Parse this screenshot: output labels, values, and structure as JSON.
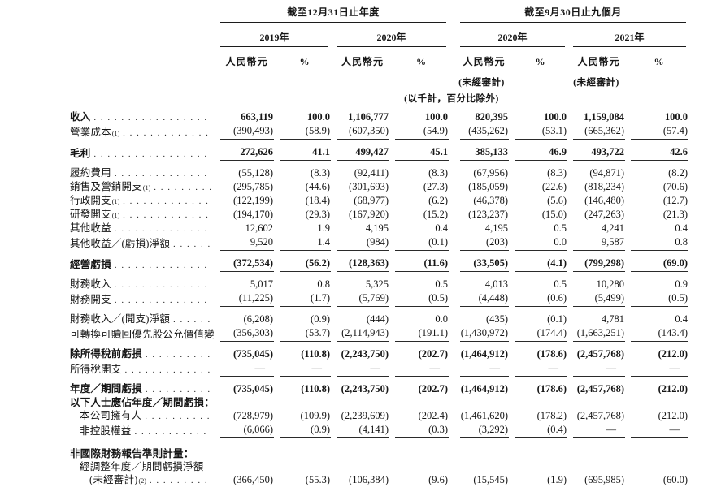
{
  "table": {
    "header": {
      "groups": [
        {
          "title": "截至12月31日止年度",
          "years": [
            {
              "label": "2019年",
              "unaudited": false
            },
            {
              "label": "2020年",
              "unaudited": false
            }
          ]
        },
        {
          "title": "截至9月30日止九個月",
          "years": [
            {
              "label": "2020年",
              "unaudited": true
            },
            {
              "label": "2021年",
              "unaudited": true
            }
          ]
        }
      ],
      "currency_label": "人民幣元",
      "percent_label": "%",
      "unaudited_label": "(未經審計)",
      "scale_note": "(以千計，百分比除外)"
    },
    "rows": [
      {
        "label": "收入",
        "sup": "",
        "bold": true,
        "indent": 0,
        "leader": true,
        "gap_above": true,
        "rule_below": false,
        "values": [
          "663,119",
          "100.0",
          "1,106,777",
          "100.0",
          "820,395",
          "100.0",
          "1,159,084",
          "100.0"
        ]
      },
      {
        "label": "營業成本",
        "sup": "(1)",
        "bold": false,
        "indent": 0,
        "leader": true,
        "gap_above": false,
        "rule_below": true,
        "values": [
          "(390,493)",
          "(58.9)",
          "(607,350)",
          "(54.9)",
          "(435,262)",
          "(53.1)",
          "(665,362)",
          "(57.4)"
        ]
      },
      {
        "label": "毛利",
        "sup": "",
        "bold": true,
        "indent": 0,
        "leader": true,
        "gap_above": true,
        "rule_below": true,
        "values": [
          "272,626",
          "41.1",
          "499,427",
          "45.1",
          "385,133",
          "46.9",
          "493,722",
          "42.6"
        ]
      },
      {
        "label": "履約費用",
        "sup": "",
        "bold": false,
        "indent": 0,
        "leader": true,
        "gap_above": true,
        "rule_below": false,
        "values": [
          "(55,128)",
          "(8.3)",
          "(92,411)",
          "(8.3)",
          "(67,956)",
          "(8.3)",
          "(94,871)",
          "(8.2)"
        ]
      },
      {
        "label": "銷售及營銷開支",
        "sup": "(1)",
        "bold": false,
        "indent": 0,
        "leader": true,
        "gap_above": false,
        "rule_below": false,
        "values": [
          "(295,785)",
          "(44.6)",
          "(301,693)",
          "(27.3)",
          "(185,059)",
          "(22.6)",
          "(818,234)",
          "(70.6)"
        ]
      },
      {
        "label": "行政開支",
        "sup": "(1)",
        "bold": false,
        "indent": 0,
        "leader": true,
        "gap_above": false,
        "rule_below": false,
        "values": [
          "(122,199)",
          "(18.4)",
          "(68,977)",
          "(6.2)",
          "(46,378)",
          "(5.6)",
          "(146,480)",
          "(12.7)"
        ]
      },
      {
        "label": "研發開支",
        "sup": "(1)",
        "bold": false,
        "indent": 0,
        "leader": true,
        "gap_above": false,
        "rule_below": false,
        "values": [
          "(194,170)",
          "(29.3)",
          "(167,920)",
          "(15.2)",
          "(123,237)",
          "(15.0)",
          "(247,263)",
          "(21.3)"
        ]
      },
      {
        "label": "其他收益",
        "sup": "",
        "bold": false,
        "indent": 0,
        "leader": true,
        "gap_above": false,
        "rule_below": false,
        "values": [
          "12,602",
          "1.9",
          "4,195",
          "0.4",
          "4,195",
          "0.5",
          "4,241",
          "0.4"
        ]
      },
      {
        "label": "其他收益／(虧損)淨額",
        "sup": "",
        "bold": false,
        "indent": 0,
        "leader": true,
        "gap_above": false,
        "rule_below": true,
        "values": [
          "9,520",
          "1.4",
          "(984)",
          "(0.1)",
          "(203)",
          "0.0",
          "9,587",
          "0.8"
        ]
      },
      {
        "label": "經營虧損",
        "sup": "",
        "bold": true,
        "indent": 0,
        "leader": true,
        "gap_above": true,
        "rule_below": true,
        "values": [
          "(372,534)",
          "(56.2)",
          "(128,363)",
          "(11.6)",
          "(33,505)",
          "(4.1)",
          "(799,298)",
          "(69.0)"
        ]
      },
      {
        "label": "財務收入",
        "sup": "",
        "bold": false,
        "indent": 0,
        "leader": true,
        "gap_above": true,
        "rule_below": false,
        "values": [
          "5,017",
          "0.8",
          "5,325",
          "0.5",
          "4,013",
          "0.5",
          "10,280",
          "0.9"
        ]
      },
      {
        "label": "財務開支",
        "sup": "",
        "bold": false,
        "indent": 0,
        "leader": true,
        "gap_above": false,
        "rule_below": true,
        "values": [
          "(11,225)",
          "(1.7)",
          "(5,769)",
          "(0.5)",
          "(4,448)",
          "(0.6)",
          "(5,499)",
          "(0.5)"
        ]
      },
      {
        "label": "財務收入／(開支)淨額",
        "sup": "",
        "bold": false,
        "indent": 0,
        "leader": true,
        "gap_above": true,
        "rule_below": false,
        "values": [
          "(6,208)",
          "(0.9)",
          "(444)",
          "0.0",
          "(435)",
          "(0.1)",
          "4,781",
          "0.4"
        ]
      },
      {
        "label": "可轉換可贖回優先股公允價值變動",
        "sup": "",
        "bold": false,
        "indent": 0,
        "leader": true,
        "gap_above": false,
        "rule_below": true,
        "values": [
          "(356,303)",
          "(53.7)",
          "(2,114,943)",
          "(191.1)",
          "(1,430,972)",
          "(174.4)",
          "(1,663,251)",
          "(143.4)"
        ]
      },
      {
        "label": "除所得稅前虧損",
        "sup": "",
        "bold": true,
        "indent": 0,
        "leader": true,
        "gap_above": true,
        "rule_below": false,
        "values": [
          "(735,045)",
          "(110.8)",
          "(2,243,750)",
          "(202.7)",
          "(1,464,912)",
          "(178.6)",
          "(2,457,768)",
          "(212.0)"
        ]
      },
      {
        "label": "所得稅開支",
        "sup": "",
        "bold": false,
        "indent": 0,
        "leader": true,
        "gap_above": false,
        "rule_below": true,
        "values": [
          "—",
          "—",
          "—",
          "—",
          "—",
          "—",
          "—",
          "—"
        ]
      },
      {
        "label": "年度／期間虧損",
        "sup": "",
        "bold": true,
        "indent": 0,
        "leader": true,
        "gap_above": true,
        "rule_below": false,
        "values": [
          "(735,045)",
          "(110.8)",
          "(2,243,750)",
          "(202.7)",
          "(1,464,912)",
          "(178.6)",
          "(2,457,768)",
          "(212.0)"
        ]
      },
      {
        "label": "以下人士應佔年度／期間虧損：",
        "sup": "",
        "bold": true,
        "indent": 0,
        "leader": false,
        "gap_above": false,
        "rule_below": false,
        "values": []
      },
      {
        "label": "本公司擁有人",
        "sup": "",
        "bold": false,
        "indent": 1,
        "leader": true,
        "gap_above": false,
        "rule_below": false,
        "values": [
          "(728,979)",
          "(109.9)",
          "(2,239,609)",
          "(202.4)",
          "(1,461,620)",
          "(178.2)",
          "(2,457,768)",
          "(212.0)"
        ]
      },
      {
        "label": "非控股權益",
        "sup": "",
        "bold": false,
        "indent": 1,
        "leader": true,
        "gap_above": false,
        "rule_below": true,
        "values": [
          "(6,066)",
          "(0.9)",
          "(4,141)",
          "(0.3)",
          "(3,292)",
          "(0.4)",
          "—",
          "—"
        ]
      },
      {
        "label": "非國際財務報告準則計量：",
        "sup": "",
        "bold": true,
        "indent": 0,
        "leader": false,
        "gap_above": true,
        "rule_below": false,
        "values": []
      },
      {
        "label": "經調整年度／期間虧損淨額",
        "sup": "",
        "bold": false,
        "indent": 1,
        "leader": false,
        "gap_above": false,
        "rule_below": false,
        "values": []
      },
      {
        "label": "(未經審計)",
        "sup": "(2)",
        "bold": false,
        "indent": 2,
        "leader": true,
        "gap_above": false,
        "rule_below": false,
        "values": [
          "(366,450)",
          "(55.3)",
          "(106,384)",
          "(9.6)",
          "(15,545)",
          "(1.9)",
          "(695,985)",
          "(60.0)"
        ]
      }
    ]
  }
}
